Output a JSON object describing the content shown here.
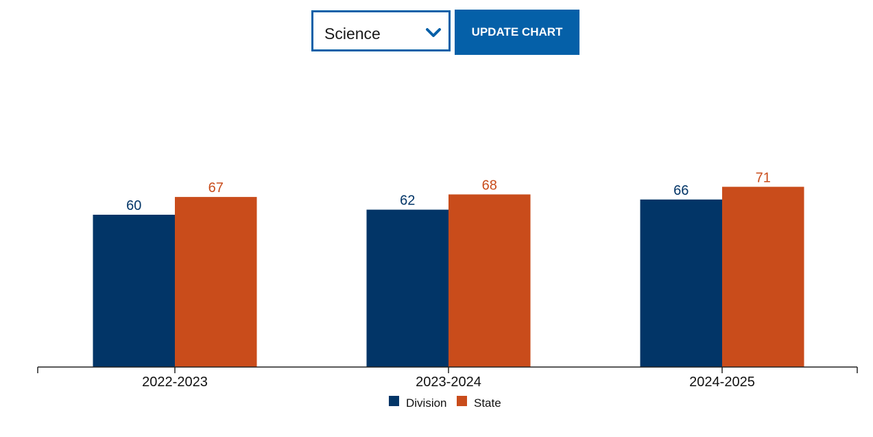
{
  "controls": {
    "subject_value": "Science",
    "update_label": "UPDATE CHART",
    "accent_color": "#0560a8"
  },
  "chart_data": {
    "type": "bar",
    "categories": [
      "2022-2023",
      "2023-2024",
      "2024-2025"
    ],
    "series": [
      {
        "name": "Division",
        "values": [
          60,
          62,
          66
        ],
        "color": "#023567"
      },
      {
        "name": "State",
        "values": [
          67,
          68,
          71
        ],
        "color": "#c94c1b"
      }
    ],
    "ylim": [
      0,
      100
    ],
    "grid": false,
    "legend_position": "bottom-center",
    "show_value_labels": true
  }
}
